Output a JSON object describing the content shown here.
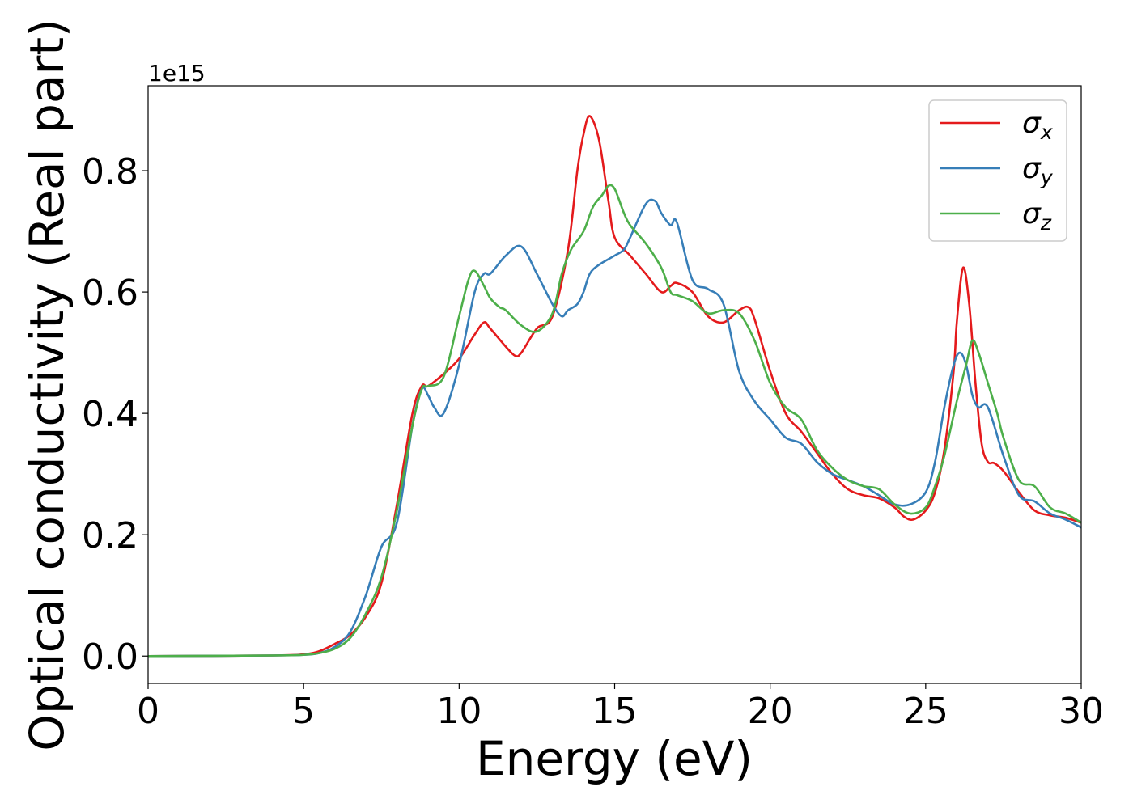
{
  "chart_data": {
    "type": "line",
    "title": "",
    "xlabel": "Energy (eV)",
    "ylabel": "Optical conductivity (Real part)",
    "y_offset_label": "1e15",
    "xlim": [
      0,
      30
    ],
    "ylim": [
      -0.045,
      0.94
    ],
    "x_ticks": [
      0,
      5,
      10,
      15,
      20,
      25,
      30
    ],
    "x_tick_labels": [
      "0",
      "5",
      "10",
      "15",
      "20",
      "25",
      "30"
    ],
    "y_ticks": [
      0.0,
      0.2,
      0.4,
      0.6,
      0.8
    ],
    "y_tick_labels": [
      "0.0",
      "0.2",
      "0.4",
      "0.6",
      "0.8"
    ],
    "grid": false,
    "legend_position": "top-right",
    "series": [
      {
        "name": "σx",
        "legend_symbol": "σ",
        "legend_subscript": "x",
        "color": "#e41a1c",
        "x": [
          0,
          4,
          5,
          5.5,
          6,
          6.5,
          7,
          7.5,
          8,
          8.5,
          8.8,
          9,
          9.5,
          10,
          10.5,
          10.8,
          11,
          11.5,
          11.8,
          12,
          12.5,
          13,
          13.5,
          13.8,
          14,
          14.2,
          14.5,
          14.8,
          15,
          15.5,
          16,
          16.5,
          16.8,
          17,
          17.5,
          18,
          18.5,
          19,
          19.3,
          19.5,
          20,
          20.5,
          21,
          21.5,
          22,
          22.5,
          23,
          23.5,
          24,
          24.3,
          24.6,
          25,
          25.3,
          25.6,
          25.9,
          26,
          26.2,
          26.4,
          26.6,
          26.8,
          27,
          27.2,
          27.5,
          28,
          28.5,
          29,
          29.5,
          30
        ],
        "y": [
          0,
          0.001,
          0.003,
          0.008,
          0.02,
          0.035,
          0.065,
          0.12,
          0.25,
          0.4,
          0.445,
          0.445,
          0.465,
          0.49,
          0.53,
          0.55,
          0.54,
          0.51,
          0.495,
          0.5,
          0.54,
          0.56,
          0.67,
          0.8,
          0.86,
          0.89,
          0.85,
          0.75,
          0.69,
          0.66,
          0.63,
          0.6,
          0.61,
          0.615,
          0.6,
          0.56,
          0.55,
          0.57,
          0.575,
          0.555,
          0.47,
          0.4,
          0.37,
          0.335,
          0.3,
          0.275,
          0.265,
          0.26,
          0.245,
          0.23,
          0.225,
          0.24,
          0.27,
          0.34,
          0.47,
          0.55,
          0.64,
          0.58,
          0.45,
          0.35,
          0.32,
          0.318,
          0.305,
          0.27,
          0.24,
          0.232,
          0.228,
          0.22
        ]
      },
      {
        "name": "σy",
        "legend_symbol": "σ",
        "legend_subscript": "y",
        "color": "#377eb8",
        "x": [
          0,
          4,
          5,
          5.5,
          6,
          6.5,
          7,
          7.5,
          8,
          8.5,
          8.8,
          9,
          9.2,
          9.5,
          10,
          10.5,
          10.8,
          11,
          11.5,
          12,
          12.5,
          13,
          13.3,
          13.5,
          13.8,
          14,
          14.2,
          14.5,
          15,
          15.3,
          15.5,
          16,
          16.3,
          16.5,
          16.8,
          17,
          17.5,
          18,
          18.5,
          19,
          19.5,
          20,
          20.5,
          21,
          21.5,
          22,
          22.5,
          23,
          23.5,
          24,
          24.5,
          25,
          25.3,
          25.6,
          25.9,
          26.1,
          26.3,
          26.5,
          26.7,
          27,
          27.5,
          28,
          28.5,
          29,
          29.5,
          30
        ],
        "y": [
          0,
          0.001,
          0.002,
          0.005,
          0.015,
          0.04,
          0.1,
          0.18,
          0.22,
          0.38,
          0.44,
          0.43,
          0.41,
          0.4,
          0.48,
          0.6,
          0.63,
          0.63,
          0.66,
          0.675,
          0.63,
          0.58,
          0.56,
          0.57,
          0.58,
          0.6,
          0.63,
          0.645,
          0.66,
          0.67,
          0.69,
          0.745,
          0.75,
          0.73,
          0.71,
          0.715,
          0.62,
          0.605,
          0.58,
          0.47,
          0.42,
          0.39,
          0.36,
          0.35,
          0.32,
          0.3,
          0.29,
          0.28,
          0.265,
          0.25,
          0.25,
          0.27,
          0.32,
          0.41,
          0.48,
          0.5,
          0.48,
          0.43,
          0.41,
          0.41,
          0.33,
          0.265,
          0.255,
          0.235,
          0.225,
          0.212
        ]
      },
      {
        "name": "σz",
        "legend_symbol": "σ",
        "legend_subscript": "z",
        "color": "#4daf4a",
        "x": [
          0,
          4,
          5,
          5.5,
          6,
          6.5,
          7,
          7.5,
          8,
          8.5,
          8.8,
          9,
          9.5,
          10,
          10.3,
          10.5,
          10.8,
          11,
          11.3,
          11.5,
          12,
          12.5,
          13,
          13.3,
          13.6,
          14,
          14.3,
          14.6,
          14.8,
          15,
          15.3,
          15.5,
          16,
          16.5,
          16.8,
          17,
          17.5,
          18,
          18.5,
          19,
          19.5,
          20,
          20.5,
          21,
          21.5,
          22,
          22.5,
          23,
          23.5,
          24,
          24.5,
          25,
          25.3,
          25.6,
          26,
          26.3,
          26.5,
          26.7,
          27,
          27.3,
          27.5,
          28,
          28.5,
          29,
          29.5,
          30
        ],
        "y": [
          0,
          0.001,
          0.002,
          0.005,
          0.012,
          0.03,
          0.07,
          0.13,
          0.24,
          0.38,
          0.44,
          0.445,
          0.46,
          0.56,
          0.62,
          0.635,
          0.61,
          0.59,
          0.575,
          0.57,
          0.545,
          0.535,
          0.565,
          0.63,
          0.67,
          0.7,
          0.74,
          0.76,
          0.775,
          0.77,
          0.73,
          0.71,
          0.68,
          0.64,
          0.6,
          0.595,
          0.585,
          0.565,
          0.57,
          0.565,
          0.52,
          0.45,
          0.41,
          0.39,
          0.34,
          0.31,
          0.29,
          0.28,
          0.275,
          0.25,
          0.235,
          0.245,
          0.28,
          0.33,
          0.42,
          0.48,
          0.52,
          0.5,
          0.45,
          0.4,
          0.36,
          0.29,
          0.28,
          0.245,
          0.235,
          0.22
        ]
      }
    ]
  }
}
